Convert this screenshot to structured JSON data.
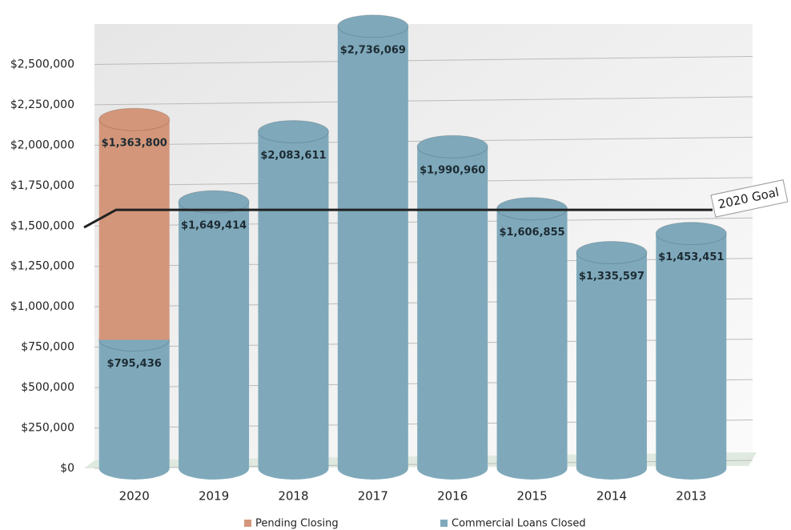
{
  "chart_data": {
    "type": "bar",
    "stacked": true,
    "categories": [
      "2020",
      "2019",
      "2018",
      "2017",
      "2016",
      "2015",
      "2014",
      "2013"
    ],
    "series": [
      {
        "name": "Commercial Loans Closed",
        "color": "#7fa9bb",
        "values": [
          795436,
          1649414,
          2083611,
          2736069,
          1990960,
          1606855,
          1335597,
          1453451
        ],
        "value_labels": [
          "$795,436",
          "$1,649,414",
          "$2,083,611",
          "$2,736,069",
          "$1,990,960",
          "$1,606,855",
          "$1,335,597",
          "$1,453,451"
        ]
      },
      {
        "name": "Pending Closing",
        "color": "#d4967a",
        "values": [
          1363800,
          null,
          null,
          null,
          null,
          null,
          null,
          null
        ],
        "value_labels": [
          "$1,363,800",
          null,
          null,
          null,
          null,
          null,
          null,
          null
        ]
      }
    ],
    "goal": {
      "label": "2020 Goal",
      "value": 1600000
    },
    "ylim": [
      0,
      2750000
    ],
    "yticks": [
      {
        "value": 0,
        "label": "$0"
      },
      {
        "value": 250000,
        "label": "$250,000"
      },
      {
        "value": 500000,
        "label": "$500,000"
      },
      {
        "value": 750000,
        "label": "$750,000"
      },
      {
        "value": 1000000,
        "label": "$1,000,000"
      },
      {
        "value": 1250000,
        "label": "$1,250,000"
      },
      {
        "value": 1500000,
        "label": "$1,500,000"
      },
      {
        "value": 1750000,
        "label": "$1,750,000"
      },
      {
        "value": 2000000,
        "label": "$2,000,000"
      },
      {
        "value": 2250000,
        "label": "$2,250,000"
      },
      {
        "value": 2500000,
        "label": "$2,500,000"
      }
    ],
    "grid": true,
    "legend_order": [
      1,
      0
    ]
  }
}
